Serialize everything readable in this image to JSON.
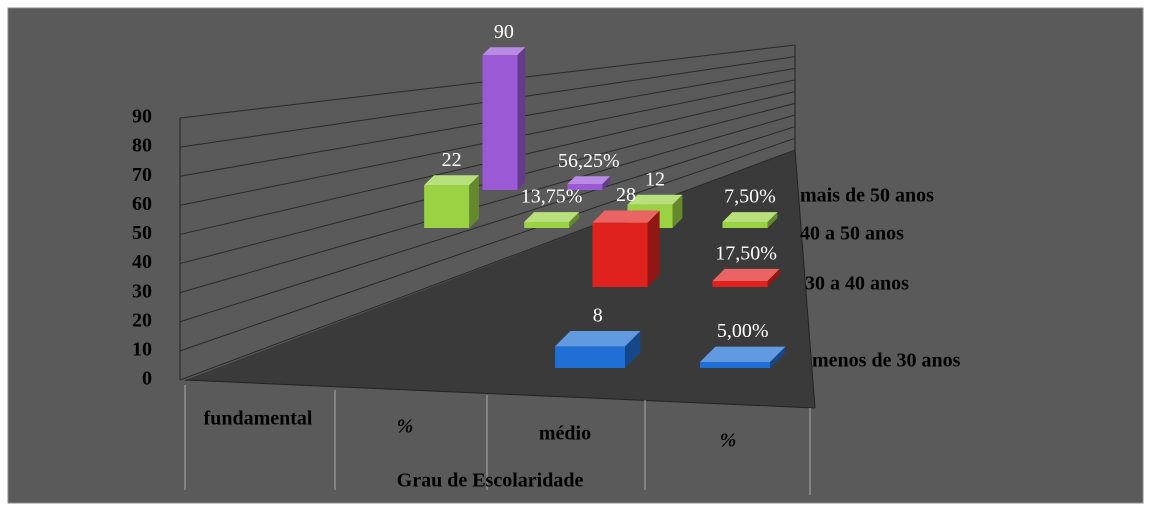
{
  "chart_data": {
    "type": "bar3d",
    "x_label": "Grau de Escolaridade",
    "categories": [
      "fundamental",
      "%",
      "médio",
      "%"
    ],
    "series": [
      {
        "name": "menos de 30 anos",
        "color": "#1f6fd6",
        "values": [
          null,
          null,
          8,
          0.05
        ],
        "value_labels": [
          null,
          null,
          "8",
          "5,00%"
        ]
      },
      {
        "name": "30 a 40 anos",
        "color": "#e0221f",
        "values": [
          null,
          null,
          28,
          0.175
        ],
        "value_labels": [
          null,
          null,
          "28",
          "17,50%"
        ]
      },
      {
        "name": "40 a 50 anos",
        "color": "#9ad244",
        "values": [
          22,
          0.1375,
          12,
          0.075
        ],
        "value_labels": [
          "22",
          "13,75%",
          "12",
          "7,50%"
        ]
      },
      {
        "name": "mais de 50 anos",
        "color": "#9a5ad6",
        "values": [
          90,
          0.5625,
          null,
          null
        ],
        "value_labels": [
          "90",
          "56,25%",
          null,
          null
        ]
      }
    ],
    "ylim": [
      0,
      90
    ],
    "yticks": [
      0,
      10,
      20,
      30,
      40,
      50,
      60,
      70,
      80,
      90
    ],
    "grid": true
  }
}
